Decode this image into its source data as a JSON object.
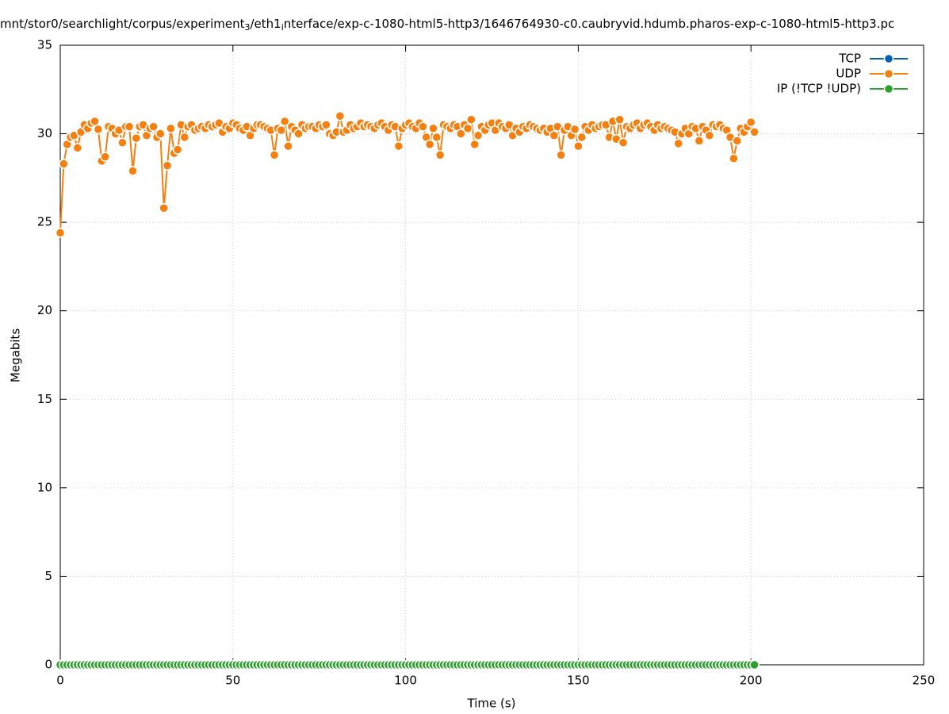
{
  "chart_data": {
    "type": "line",
    "title": [
      "mnt/stor0/searchlight/corpus/experiment",
      "3",
      "/eth1",
      "i",
      "nterface/exp-c-1080-html5-http3/1646764930-c0.caubryvid.hdumb.pharos-exp-c-1080-html5-http3.pc"
    ],
    "xlabel": "Time (s)",
    "ylabel": "Megabits",
    "xlim": [
      0,
      250
    ],
    "xticks": [
      0,
      50,
      100,
      150,
      200,
      250
    ],
    "ylim": [
      0,
      35
    ],
    "yticks": [
      0,
      5,
      10,
      15,
      20,
      25,
      30,
      35
    ],
    "grid": true,
    "legend": "top-right",
    "x": [
      0,
      1,
      2,
      3,
      4,
      5,
      6,
      7,
      8,
      9,
      10,
      11,
      12,
      13,
      14,
      15,
      16,
      17,
      18,
      19,
      20,
      21,
      22,
      23,
      24,
      25,
      26,
      27,
      28,
      29,
      30,
      31,
      32,
      33,
      34,
      35,
      36,
      37,
      38,
      39,
      40,
      41,
      42,
      43,
      44,
      45,
      46,
      47,
      48,
      49,
      50,
      51,
      52,
      53,
      54,
      55,
      56,
      57,
      58,
      59,
      60,
      61,
      62,
      63,
      64,
      65,
      66,
      67,
      68,
      69,
      70,
      71,
      72,
      73,
      74,
      75,
      76,
      77,
      78,
      79,
      80,
      81,
      82,
      83,
      84,
      85,
      86,
      87,
      88,
      89,
      90,
      91,
      92,
      93,
      94,
      95,
      96,
      97,
      98,
      99,
      100,
      101,
      102,
      103,
      104,
      105,
      106,
      107,
      108,
      109,
      110,
      111,
      112,
      113,
      114,
      115,
      116,
      117,
      118,
      119,
      120,
      121,
      122,
      123,
      124,
      125,
      126,
      127,
      128,
      129,
      130,
      131,
      132,
      133,
      134,
      135,
      136,
      137,
      138,
      139,
      140,
      141,
      142,
      143,
      144,
      145,
      146,
      147,
      148,
      149,
      150,
      151,
      152,
      153,
      154,
      155,
      156,
      157,
      158,
      159,
      160,
      161,
      162,
      163,
      164,
      165,
      166,
      167,
      168,
      169,
      170,
      171,
      172,
      173,
      174,
      175,
      176,
      177,
      178,
      179,
      180,
      181,
      182,
      183,
      184,
      185,
      186,
      187,
      188,
      189,
      190,
      191,
      192,
      193,
      194,
      195,
      196,
      197,
      198,
      199,
      200,
      201
    ],
    "series": [
      {
        "name": "TCP",
        "color": "#0060ad",
        "values": [
          0,
          0,
          0,
          0,
          0,
          0,
          0,
          0,
          0,
          0,
          0,
          0,
          0,
          0,
          0,
          0,
          0,
          0,
          0,
          0,
          0,
          0,
          0,
          0,
          0,
          0,
          0,
          0,
          0,
          0,
          0,
          0,
          0,
          0,
          0,
          0,
          0,
          0,
          0,
          0,
          0,
          0,
          0,
          0,
          0,
          0,
          0,
          0,
          0,
          0,
          0,
          0,
          0,
          0,
          0,
          0,
          0,
          0,
          0,
          0,
          0,
          0,
          0,
          0,
          0,
          0,
          0,
          0,
          0,
          0,
          0,
          0,
          0,
          0,
          0,
          0,
          0,
          0,
          0,
          0,
          0,
          0,
          0,
          0,
          0,
          0,
          0,
          0,
          0,
          0,
          0,
          0,
          0,
          0,
          0,
          0,
          0,
          0,
          0,
          0,
          0,
          0,
          0,
          0,
          0,
          0,
          0,
          0,
          0,
          0,
          0,
          0,
          0,
          0,
          0,
          0,
          0,
          0,
          0,
          0,
          0,
          0,
          0,
          0,
          0,
          0,
          0,
          0,
          0,
          0,
          0,
          0,
          0,
          0,
          0,
          0,
          0,
          0,
          0,
          0,
          0,
          0,
          0,
          0,
          0,
          0,
          0,
          0,
          0,
          0,
          0,
          0,
          0,
          0,
          0,
          0,
          0,
          0,
          0,
          0,
          0,
          0,
          0,
          0,
          0,
          0,
          0,
          0,
          0,
          0,
          0,
          0,
          0,
          0,
          0,
          0,
          0,
          0,
          0,
          0,
          0,
          0,
          0,
          0,
          0,
          0,
          0,
          0,
          0,
          0,
          0,
          0,
          0,
          0,
          0,
          0,
          0,
          0,
          0,
          0,
          0,
          0
        ]
      },
      {
        "name": "UDP",
        "color": "#f5800f",
        "values": [
          24.4,
          28.3,
          29.4,
          29.8,
          29.9,
          29.2,
          30.1,
          30.5,
          30.3,
          30.6,
          30.7,
          30.25,
          28.46,
          28.7,
          30.4,
          30.3,
          30.0,
          30.2,
          29.5,
          30.4,
          30.4,
          27.9,
          29.75,
          30.4,
          30.5,
          29.9,
          30.3,
          30.4,
          29.8,
          30.0,
          25.8,
          28.2,
          30.3,
          28.9,
          29.1,
          30.5,
          29.8,
          30.4,
          30.5,
          30.2,
          30.3,
          30.4,
          30.3,
          30.5,
          30.4,
          30.5,
          30.6,
          30.1,
          30.4,
          30.3,
          30.6,
          30.5,
          30.3,
          30.2,
          30.4,
          29.9,
          30.3,
          30.5,
          30.5,
          30.4,
          30.3,
          30.2,
          28.8,
          30.3,
          30.2,
          30.7,
          29.3,
          30.4,
          30.2,
          30.0,
          30.5,
          30.3,
          30.4,
          30.4,
          30.3,
          30.5,
          30.4,
          30.5,
          30.0,
          29.9,
          30.1,
          31.0,
          30.1,
          30.2,
          30.5,
          30.3,
          30.4,
          30.6,
          30.4,
          30.5,
          30.4,
          30.3,
          30.5,
          30.6,
          30.4,
          30.2,
          30.5,
          30.4,
          29.3,
          30.3,
          30.5,
          30.6,
          30.4,
          30.3,
          30.6,
          30.4,
          29.8,
          29.4,
          30.3,
          29.8,
          28.8,
          30.5,
          30.4,
          30.3,
          30.5,
          30.4,
          30.0,
          30.5,
          30.3,
          30.8,
          29.4,
          29.9,
          30.4,
          30.2,
          30.5,
          30.6,
          30.2,
          30.6,
          30.4,
          30.3,
          30.5,
          29.9,
          30.3,
          30.1,
          30.4,
          30.3,
          30.5,
          30.4,
          30.3,
          30.2,
          30.3,
          30.1,
          30.3,
          29.9,
          30.4,
          28.8,
          30.2,
          30.4,
          29.9,
          30.25,
          29.3,
          29.8,
          30.4,
          30.2,
          30.5,
          30.3,
          30.4,
          30.5,
          30.5,
          29.8,
          30.7,
          29.7,
          30.8,
          29.5,
          30.4,
          30.3,
          30.5,
          30.6,
          30.3,
          30.5,
          30.6,
          30.4,
          30.2,
          30.5,
          30.3,
          30.4,
          30.3,
          30.2,
          30.1,
          29.45,
          30.0,
          30.3,
          30.0,
          30.4,
          30.3,
          29.6,
          30.4,
          30.2,
          29.9,
          30.5,
          30.4,
          30.5,
          30.3,
          30.2,
          29.8,
          28.6,
          29.6,
          30.3,
          30.1,
          30.4,
          30.65,
          30.1
        ]
      },
      {
        "name": "IP (!TCP  !UDP)",
        "color": "#2ca02c",
        "values": [
          0,
          0,
          0,
          0,
          0,
          0,
          0,
          0,
          0,
          0,
          0,
          0,
          0,
          0,
          0,
          0,
          0,
          0,
          0,
          0,
          0,
          0,
          0,
          0,
          0,
          0,
          0,
          0,
          0,
          0,
          0,
          0,
          0,
          0,
          0,
          0,
          0,
          0,
          0,
          0,
          0,
          0,
          0,
          0,
          0,
          0,
          0,
          0,
          0,
          0,
          0,
          0,
          0,
          0,
          0,
          0,
          0,
          0,
          0,
          0,
          0,
          0,
          0,
          0,
          0,
          0,
          0,
          0,
          0,
          0,
          0,
          0,
          0,
          0,
          0,
          0,
          0,
          0,
          0,
          0,
          0,
          0,
          0,
          0,
          0,
          0,
          0,
          0,
          0,
          0,
          0,
          0,
          0,
          0,
          0,
          0,
          0,
          0,
          0,
          0,
          0,
          0,
          0,
          0,
          0,
          0,
          0,
          0,
          0,
          0,
          0,
          0,
          0,
          0,
          0,
          0,
          0,
          0,
          0,
          0,
          0,
          0,
          0,
          0,
          0,
          0,
          0,
          0,
          0,
          0,
          0,
          0,
          0,
          0,
          0,
          0,
          0,
          0,
          0,
          0,
          0,
          0,
          0,
          0,
          0,
          0,
          0,
          0,
          0,
          0,
          0,
          0,
          0,
          0,
          0,
          0,
          0,
          0,
          0,
          0,
          0,
          0,
          0,
          0,
          0,
          0,
          0,
          0,
          0,
          0,
          0,
          0,
          0,
          0,
          0,
          0,
          0,
          0,
          0,
          0,
          0,
          0,
          0,
          0,
          0,
          0,
          0,
          0,
          0,
          0,
          0,
          0,
          0,
          0,
          0,
          0,
          0,
          0,
          0,
          0,
          0,
          0
        ]
      }
    ]
  }
}
